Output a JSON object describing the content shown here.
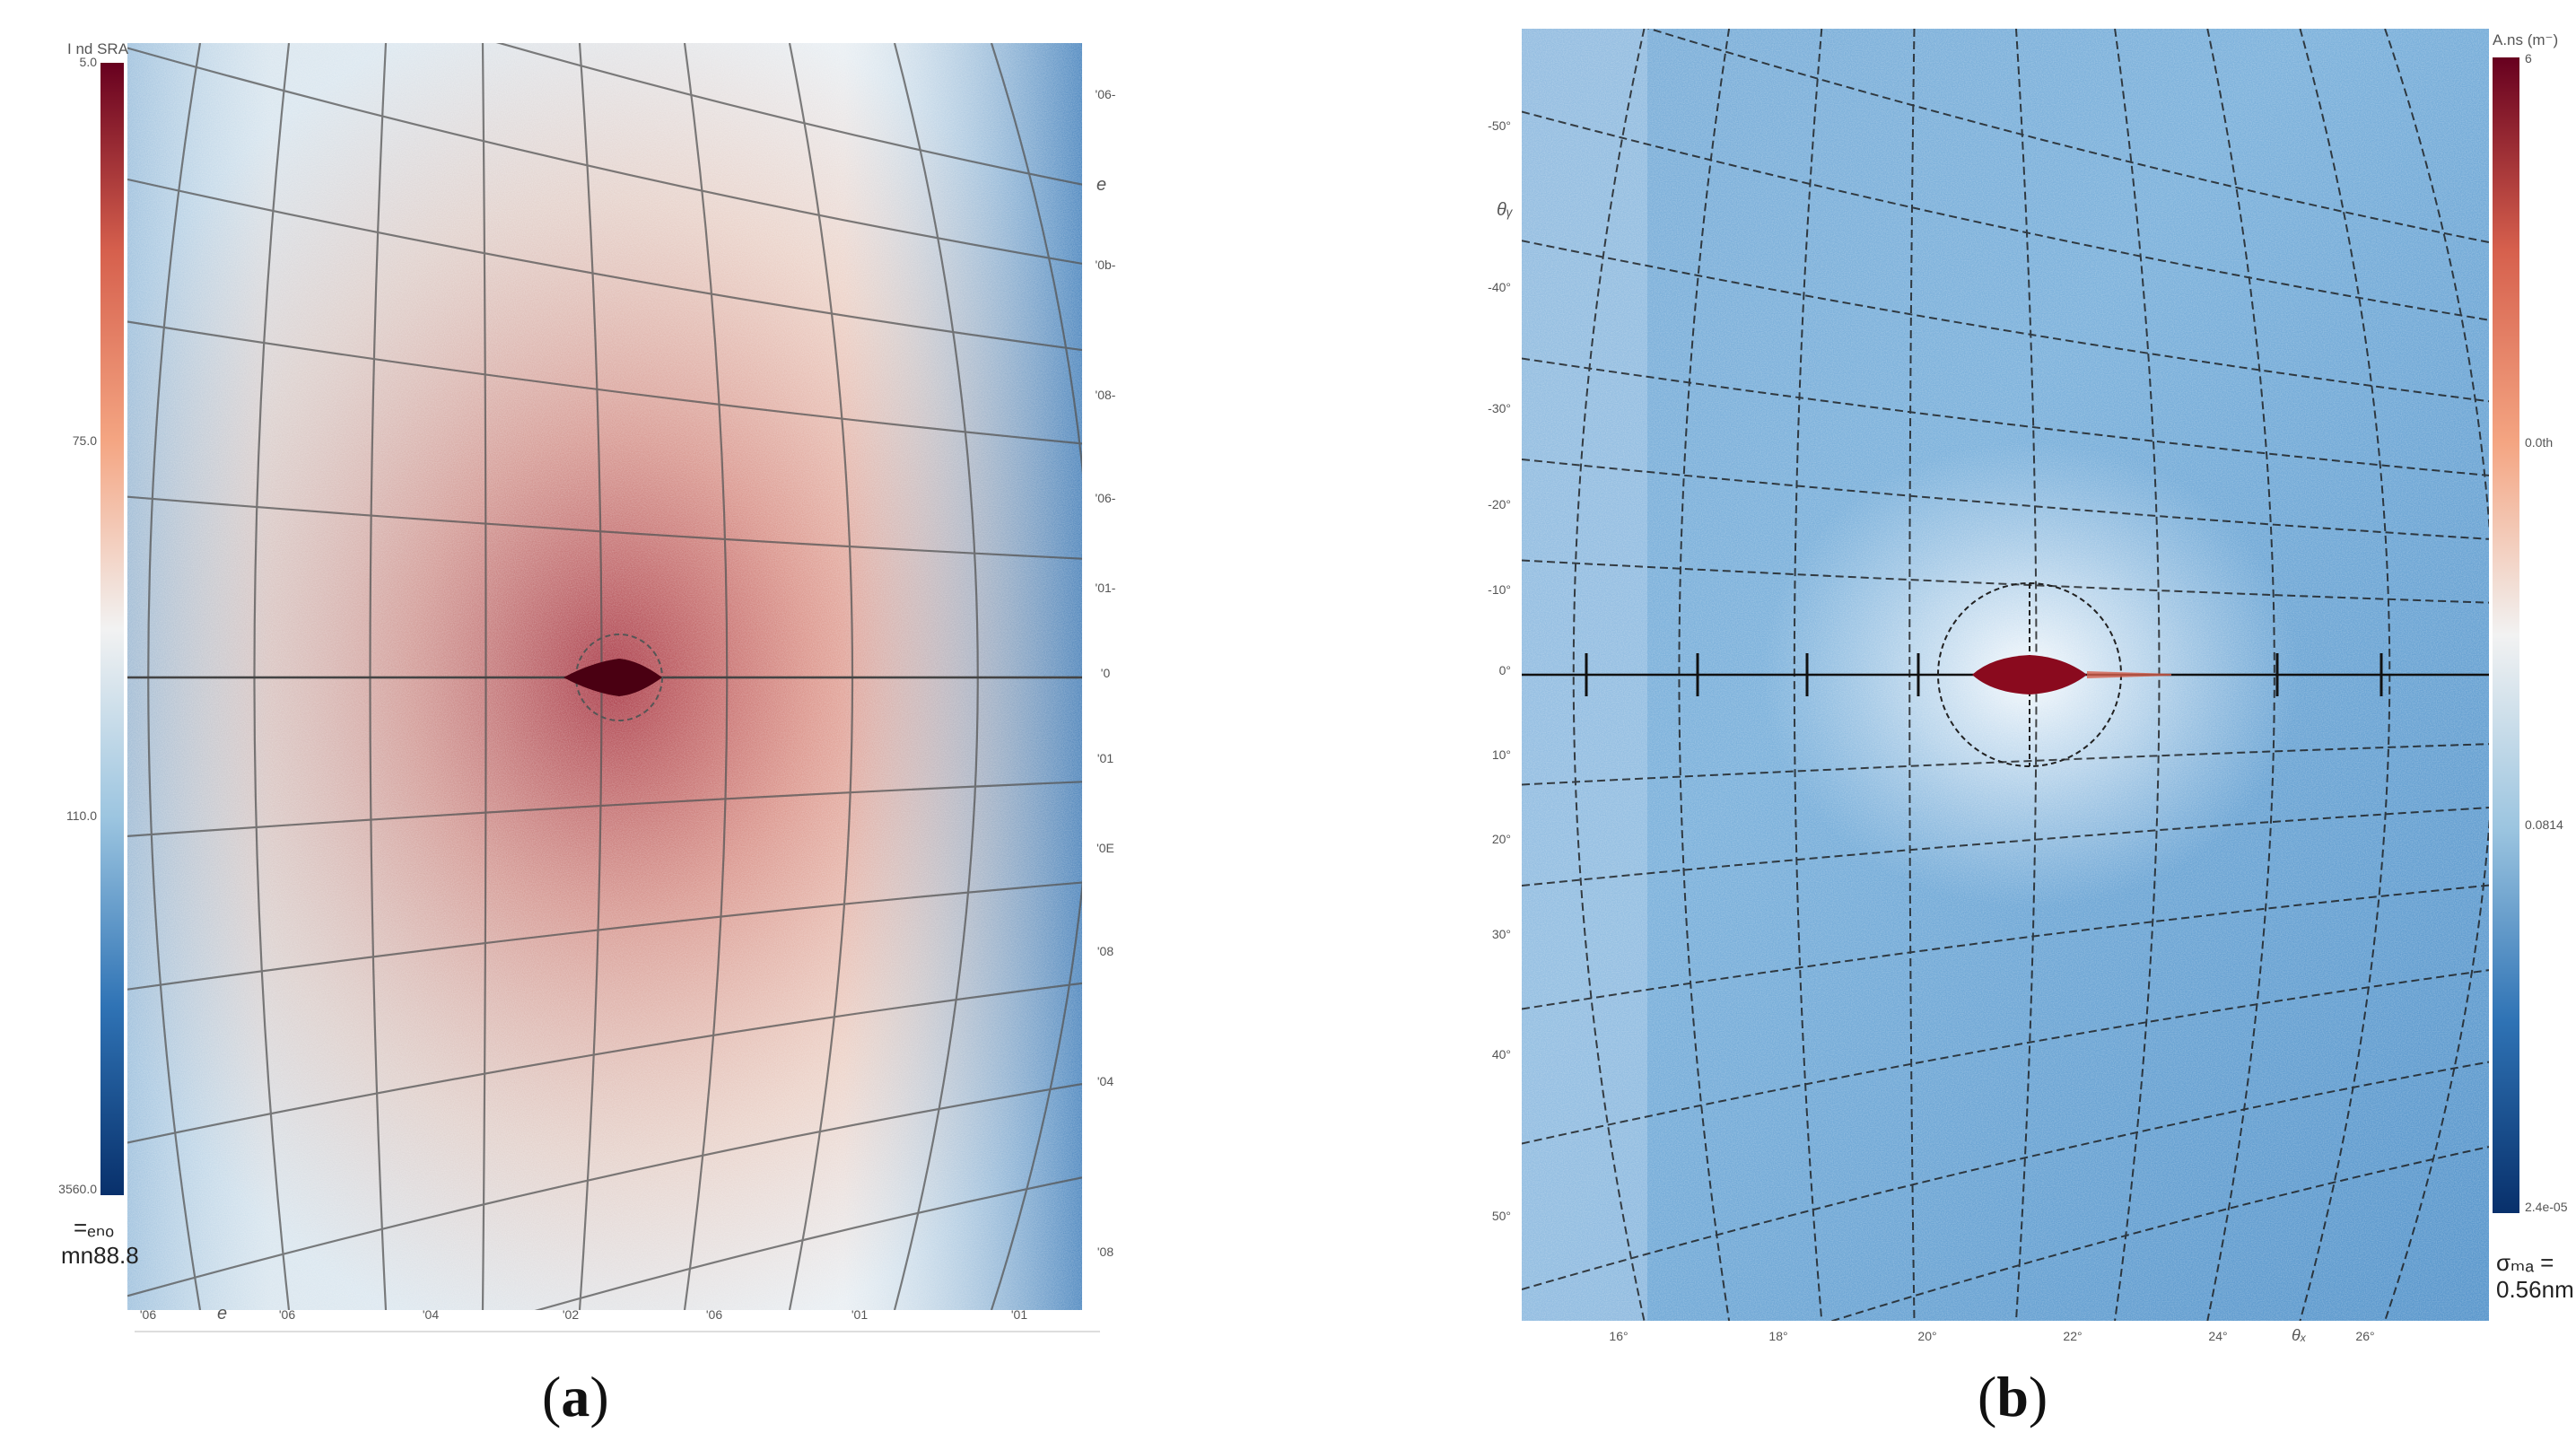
{
  "chart_data": [
    {
      "type": "heatmap",
      "panel": "a",
      "caption": "(a)",
      "caption_letter": "a",
      "colormap": [
        "#08306b",
        "#2f73b5",
        "#9cc5e0",
        "#f2f2f2",
        "#f4a582",
        "#d6604d",
        "#67001f"
      ],
      "colorbar_label": "I nd SRA",
      "colorbar_ticks": [
        "5.0",
        "75.0",
        "110.0",
        "3560.0"
      ],
      "angle_ticks_right": [
        "'06-",
        "'0b-",
        "'08-",
        "'06-",
        "'01-",
        "'0",
        "'01",
        "'0E",
        "'08",
        "'04",
        "'08"
      ],
      "right_axis_label": "e",
      "x_ticks": [
        "'06",
        "'06",
        "'04",
        "'02",
        "'06",
        "'01",
        "'01"
      ],
      "x_axis_label": "e",
      "annotation_line1": "=ₑₙₒ",
      "annotation_line2": "mn88.8",
      "grid": true
    },
    {
      "type": "heatmap",
      "panel": "b",
      "caption": "(b)",
      "caption_letter": "b",
      "colormap": [
        "#08306b",
        "#2f73b5",
        "#9cc5e0",
        "#f2f2f2",
        "#f4a582",
        "#d6604d",
        "#67001f"
      ],
      "colorbar_label": "A.ns (m⁻)",
      "colorbar_ticks": [
        "6",
        "0.0th",
        "0.0814",
        "2.4e-05"
      ],
      "angle_ticks_left": [
        "-50°",
        "-40°",
        "-30°",
        "-20°",
        "-10°",
        "0°",
        "10°",
        "20°",
        "30°",
        "40°",
        "50°"
      ],
      "left_axis_label": "θᵧ",
      "x_ticks": [
        "16°",
        "18°",
        "20°",
        "22°",
        "24°",
        "26°"
      ],
      "x_axis_label": "θₓ",
      "annotation_line1": "σₘₐ =",
      "annotation_line2": "0.56nm",
      "grid": true
    }
  ]
}
